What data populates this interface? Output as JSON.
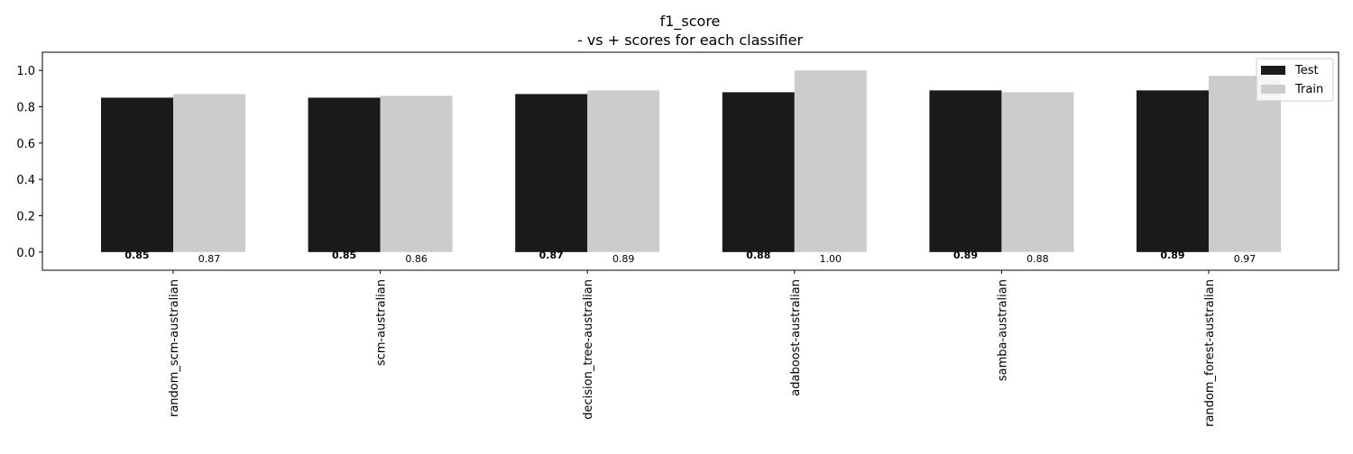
{
  "chart_data": {
    "type": "bar",
    "title": "f1_score",
    "subtitle": "- vs + scores for each classifier",
    "xlabel": "",
    "ylabel": "",
    "ylim": [
      -0.1,
      1.1
    ],
    "yticks": [
      "0.0",
      "0.2",
      "0.4",
      "0.6",
      "0.8",
      "1.0"
    ],
    "categories": [
      "random_scm-australian",
      "scm-australian",
      "decision_tree-australian",
      "adaboost-australian",
      "samba-australian",
      "random_forest-australian"
    ],
    "series": [
      {
        "name": "Test",
        "color": "#1a1a1a",
        "values": [
          0.85,
          0.85,
          0.87,
          0.88,
          0.89,
          0.89
        ],
        "labels": [
          "0.85",
          "0.85",
          "0.87",
          "0.88",
          "0.89",
          "0.89"
        ]
      },
      {
        "name": "Train",
        "color": "#cccccc",
        "values": [
          0.87,
          0.86,
          0.89,
          1.0,
          0.88,
          0.97
        ],
        "labels": [
          "0.87",
          "0.86",
          "0.89",
          "1.00",
          "0.88",
          "0.97"
        ]
      }
    ],
    "grid": false,
    "legend_position": "top-right"
  }
}
